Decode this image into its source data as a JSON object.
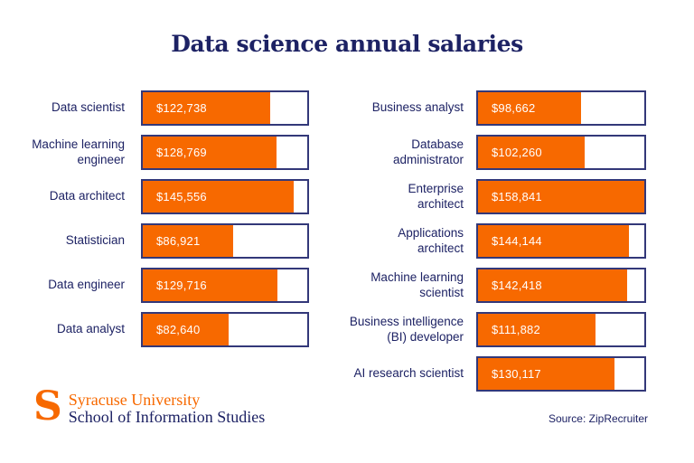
{
  "title": "Data science annual salaries",
  "colors": {
    "bar_fill": "#F76900",
    "bar_border": "#333879",
    "text_navy": "#1d2264",
    "value_text": "#ffffff",
    "logo_orange": "#F76900"
  },
  "chart_data": {
    "type": "bar",
    "orientation": "horizontal",
    "title": "Data science annual salaries",
    "value_prefix": "$",
    "max_value": 158841,
    "axis_range": [
      0,
      158841
    ],
    "grid": false,
    "legend": false,
    "columns": [
      {
        "rows": [
          {
            "label": "Data scientist",
            "value": 122738,
            "value_label": "$122,738"
          },
          {
            "label": "Machine learning\nengineer",
            "value": 128769,
            "value_label": "$128,769"
          },
          {
            "label": "Data architect",
            "value": 145556,
            "value_label": "$145,556"
          },
          {
            "label": "Statistician",
            "value": 86921,
            "value_label": "$86,921"
          },
          {
            "label": "Data engineer",
            "value": 129716,
            "value_label": "$129,716"
          },
          {
            "label": "Data analyst",
            "value": 82640,
            "value_label": "$82,640"
          }
        ]
      },
      {
        "rows": [
          {
            "label": "Business analyst",
            "value": 98662,
            "value_label": "$98,662"
          },
          {
            "label": "Database\nadministrator",
            "value": 102260,
            "value_label": "$102,260"
          },
          {
            "label": "Enterprise\narchitect",
            "value": 158841,
            "value_label": "$158,841"
          },
          {
            "label": "Applications\narchitect",
            "value": 144144,
            "value_label": "$144,144"
          },
          {
            "label": "Machine learning\nscientist",
            "value": 142418,
            "value_label": "$142,418"
          },
          {
            "label": "Business intelligence\n(BI) developer",
            "value": 111882,
            "value_label": "$111,882"
          },
          {
            "label": "AI research scientist",
            "value": 130117,
            "value_label": "$130,117"
          }
        ]
      }
    ]
  },
  "footer": {
    "logo_s": "S",
    "university": "Syracuse University",
    "school": "School of Information Studies",
    "source": "Source: ZipRecruiter"
  }
}
